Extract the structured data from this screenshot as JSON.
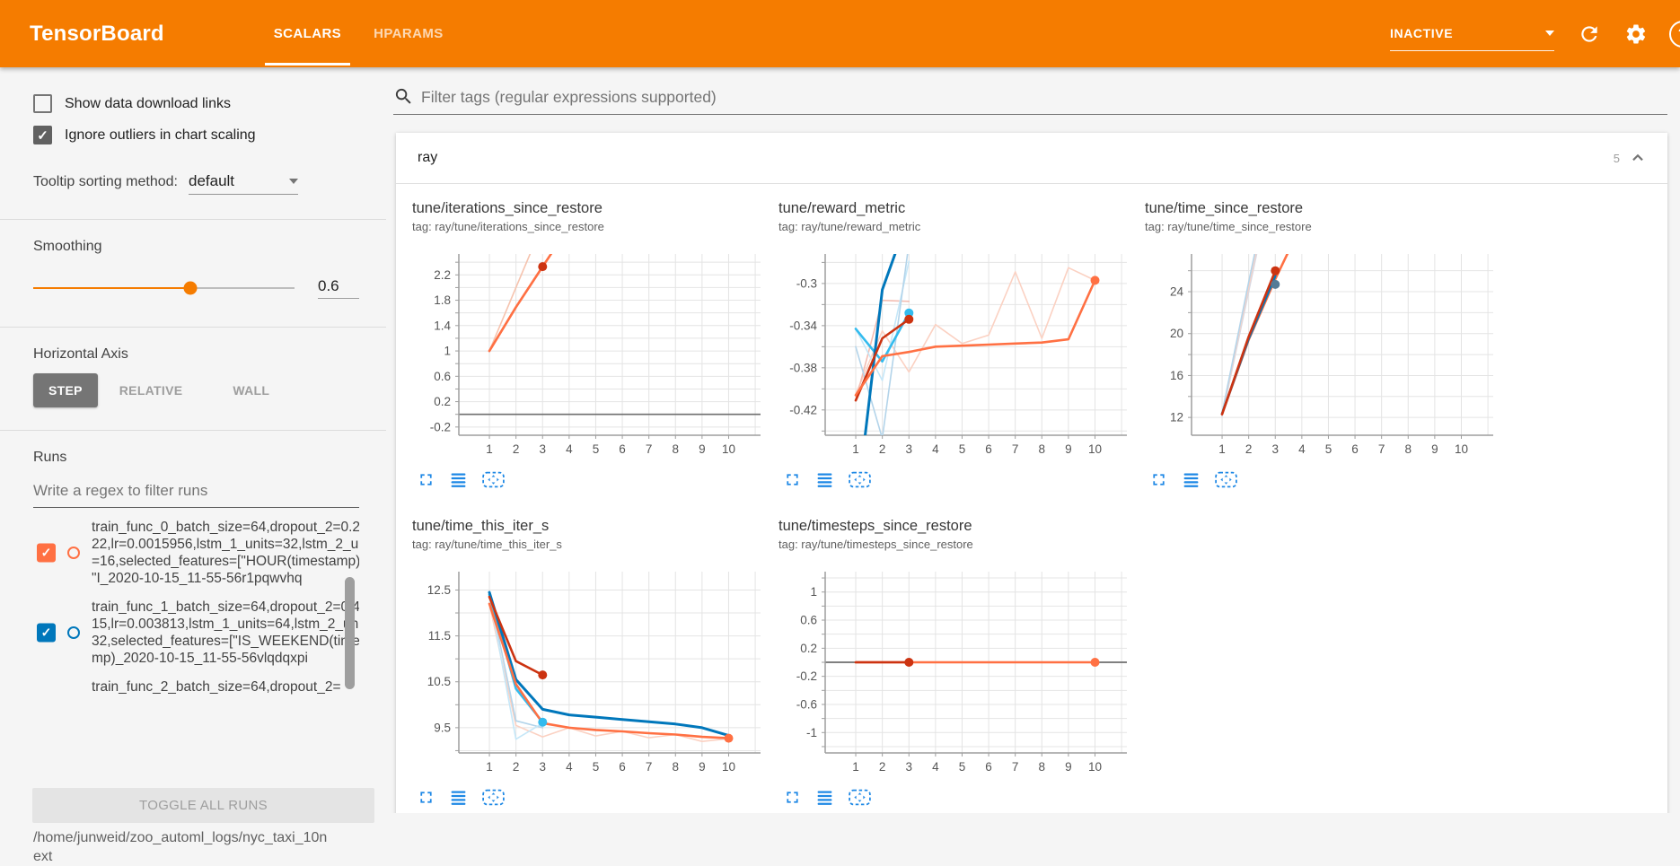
{
  "header": {
    "title": "TensorBoard",
    "tabs": [
      {
        "label": "SCALARS",
        "active": true
      },
      {
        "label": "HPARAMS",
        "active": false
      }
    ],
    "status": "INACTIVE",
    "icons": [
      "dropdown-caret-icon",
      "refresh-icon",
      "gear-icon",
      "help-icon"
    ],
    "help_glyph": "?",
    "accent_color": "#f57c00"
  },
  "sidebar": {
    "checkboxes": [
      {
        "label": "Show data download links",
        "checked": false
      },
      {
        "label": "Ignore outliers in chart scaling",
        "checked": true
      }
    ],
    "tooltip_sorting": {
      "label": "Tooltip sorting method:",
      "value": "default"
    },
    "smoothing": {
      "label": "Smoothing",
      "value": "0.6",
      "percent": 60
    },
    "horizontal_axis": {
      "label": "Horizontal Axis",
      "options": [
        "STEP",
        "RELATIVE",
        "WALL"
      ],
      "selected": "STEP"
    },
    "runs": {
      "label": "Runs",
      "filter_placeholder": "Write a regex to filter runs",
      "items": [
        {
          "name": "train_func_0_batch_size=64,dropout_2=0.21822,lr=0.0015956,lstm_1_units=32,lstm_2_units=16,selected_features=[\"HOUR(timestamp)\", \"I_2020-10-15_11-55-56r1pqwvhq",
          "color": "#ff7043",
          "checked": true,
          "checkbox_visible": true
        },
        {
          "name": "train_func_1_batch_size=64,dropout_2=0.44315,lr=0.003813,lstm_1_units=64,lstm_2_units=32,selected_features=[\"IS_WEEKEND(timestamp)_2020-10-15_11-55-56vlqdqxpi",
          "color": "#0077bb",
          "checked": true,
          "checkbox_visible": true
        },
        {
          "name": "train_func_2_batch_size=64,dropout_2=",
          "color": "#cc3311",
          "checked": true,
          "checkbox_visible": false
        }
      ],
      "toggle_button": "TOGGLE ALL RUNS",
      "log_dir": "/home/junweid/zoo_automl_logs/nyc_taxi_10next"
    }
  },
  "main": {
    "filter_placeholder": "Filter tags (regular expressions supported)",
    "section": {
      "name": "ray",
      "count": "5"
    }
  },
  "chart_data": [
    {
      "type": "line",
      "title": "tune/iterations_since_restore",
      "tag_label": "tag: ray/tune/iterations_since_restore",
      "xlabel": "step",
      "xticks": [
        1,
        2,
        3,
        4,
        5,
        6,
        7,
        8,
        9,
        10
      ],
      "xlim": [
        -0.15,
        11.2
      ],
      "ylim": [
        -0.33,
        2.53
      ],
      "yticks": [
        2.2,
        1.8,
        1.4,
        1,
        0.6,
        0.2,
        -0.2
      ],
      "yminor": 0.2,
      "grid": true,
      "zero_line": true,
      "series": [
        {
          "name": "train_func_0 (raw)",
          "color": "#f6c3ae",
          "width": 1.6,
          "points": [
            [
              1,
              1
            ],
            [
              2,
              2
            ],
            [
              3,
              3
            ]
          ]
        },
        {
          "name": "train_func_2 (smoothed)",
          "color": "#cc3311",
          "width": 2.2,
          "points": [
            [
              1,
              1
            ],
            [
              2,
              1.69
            ],
            [
              3,
              2.33
            ]
          ]
        },
        {
          "name": "train_func_0 (smoothed)",
          "color": "#ff7043",
          "width": 2.6,
          "points": [
            [
              1,
              1
            ],
            [
              2,
              1.69
            ],
            [
              3,
              2.33
            ],
            [
              4,
              2.96
            ]
          ]
        }
      ],
      "end_dots": [
        {
          "x": 3,
          "y": 2.33,
          "color": "#cc3311"
        }
      ]
    },
    {
      "type": "line",
      "title": "tune/reward_metric",
      "tag_label": "tag: ray/tune/reward_metric",
      "xlabel": "step",
      "xticks": [
        1,
        2,
        3,
        4,
        5,
        6,
        7,
        8,
        9,
        10
      ],
      "xlim": [
        -0.15,
        11.2
      ],
      "ylim": [
        -0.444,
        -0.272
      ],
      "yticks": [
        -0.3,
        -0.34,
        -0.38,
        -0.42
      ],
      "yminor": 0.02,
      "grid": true,
      "zero_line": false,
      "series": [
        {
          "name": "train_func_0 (raw)",
          "color": "#fbd1c2",
          "width": 1.6,
          "points": [
            [
              1,
              -0.405
            ],
            [
              2,
              -0.345
            ],
            [
              3,
              -0.384
            ],
            [
              4,
              -0.339
            ],
            [
              5,
              -0.357
            ],
            [
              6,
              -0.349
            ],
            [
              7,
              -0.289
            ],
            [
              8,
              -0.352
            ],
            [
              9,
              -0.285
            ],
            [
              10,
              -0.297
            ]
          ]
        },
        {
          "name": "train_func_2 (raw)",
          "color": "#f3bdb2",
          "width": 1.6,
          "points": [
            [
              1,
              -0.411
            ],
            [
              2,
              -0.316
            ],
            [
              3,
              -0.317
            ]
          ]
        },
        {
          "name": "train_func_3 (raw)",
          "color": "#c5e7f8",
          "width": 1.6,
          "points": [
            [
              1,
              -0.343
            ],
            [
              2,
              -0.392
            ],
            [
              3,
              -0.279
            ]
          ]
        },
        {
          "name": "train_func_1 (raw)",
          "color": "#b3d4ea",
          "width": 1.6,
          "points": [
            [
              1,
              -0.36
            ],
            [
              2,
              -0.447
            ],
            [
              3,
              -0.262
            ]
          ]
        },
        {
          "name": "train_func_3 (smoothed)",
          "color": "#33bbee",
          "width": 2.6,
          "points": [
            [
              1,
              -0.343
            ],
            [
              2,
              -0.374
            ],
            [
              3,
              -0.328
            ]
          ]
        },
        {
          "name": "train_func_1 (smoothed)",
          "color": "#0077bb",
          "width": 3,
          "points": [
            [
              1,
              -0.52
            ],
            [
              2,
              -0.306
            ],
            [
              3,
              -0.235
            ]
          ]
        },
        {
          "name": "train_func_2 (smoothed)",
          "color": "#cc3311",
          "width": 2.6,
          "points": [
            [
              1,
              -0.411
            ],
            [
              2,
              -0.352
            ],
            [
              3,
              -0.334
            ]
          ]
        },
        {
          "name": "train_func_0 (smoothed)",
          "color": "#ff7043",
          "width": 2.6,
          "points": [
            [
              1,
              -0.406
            ],
            [
              2,
              -0.369
            ],
            [
              3,
              -0.365
            ],
            [
              4,
              -0.36
            ],
            [
              5,
              -0.359
            ],
            [
              6,
              -0.358
            ],
            [
              7,
              -0.357
            ],
            [
              8,
              -0.356
            ],
            [
              9,
              -0.353
            ],
            [
              10,
              -0.297
            ]
          ]
        }
      ],
      "end_dots": [
        {
          "x": 3,
          "y": -0.328,
          "color": "#33bbee"
        },
        {
          "x": 3,
          "y": -0.334,
          "color": "#cc3311"
        },
        {
          "x": 10,
          "y": -0.297,
          "color": "#ff7043"
        }
      ]
    },
    {
      "type": "line",
      "title": "tune/time_since_restore",
      "tag_label": "tag: ray/tune/time_since_restore",
      "xlabel": "step",
      "xticks": [
        1,
        2,
        3,
        4,
        5,
        6,
        7,
        8,
        9,
        10
      ],
      "xlim": [
        -0.15,
        11.2
      ],
      "ylim": [
        10.3,
        27.6
      ],
      "yticks": [
        24,
        20,
        16,
        12
      ],
      "yminor": 2,
      "grid": true,
      "zero_line": false,
      "series": [
        {
          "name": "train_func_4 (raw)",
          "color": "#d8d8e2",
          "width": 1.6,
          "points": [
            [
              1,
              12.1
            ],
            [
              2,
              24.0
            ],
            [
              3,
              36
            ]
          ]
        },
        {
          "name": "train_func_0 (raw)",
          "color": "#fbd1c2",
          "width": 1.6,
          "points": [
            [
              1,
              12.3
            ],
            [
              2,
              24.5
            ],
            [
              3,
              36.6
            ]
          ]
        },
        {
          "name": "train_func_1 (raw)",
          "color": "#b3d4ea",
          "width": 1.6,
          "points": [
            [
              1,
              12.4
            ],
            [
              2,
              24.9
            ],
            [
              3,
              37
            ]
          ]
        },
        {
          "name": "train_func_0 (smoothed)",
          "color": "#ff7043",
          "width": 2.6,
          "points": [
            [
              1,
              12.3
            ],
            [
              2,
              19.4
            ],
            [
              3,
              25.2
            ],
            [
              4,
              30.5
            ]
          ]
        },
        {
          "name": "train_func_1 (smoothed)",
          "color": "#0077bb",
          "width": 2.6,
          "points": [
            [
              1,
              12.35
            ],
            [
              2,
              19.5
            ],
            [
              3,
              25.5
            ]
          ]
        },
        {
          "name": "train_func_2 (smoothed)",
          "color": "#cc3311",
          "width": 2.6,
          "points": [
            [
              1,
              12.3
            ],
            [
              2,
              19.7
            ],
            [
              3,
              26.0
            ]
          ]
        }
      ],
      "end_dots": [
        {
          "x": 3,
          "y": 26.0,
          "color": "#cc3311"
        },
        {
          "x": 3,
          "y": 24.7,
          "color": "#557b96"
        }
      ]
    },
    {
      "type": "line",
      "title": "tune/time_this_iter_s",
      "tag_label": "tag: ray/tune/time_this_iter_s",
      "xlabel": "step",
      "xticks": [
        1,
        2,
        3,
        4,
        5,
        6,
        7,
        8,
        9,
        10
      ],
      "xlim": [
        -0.15,
        11.2
      ],
      "ylim": [
        8.95,
        12.9
      ],
      "yticks": [
        12.5,
        11.5,
        10.5,
        9.5
      ],
      "yminor": 0.5,
      "grid": true,
      "zero_line": false,
      "series": [
        {
          "name": "train_func_0 (raw)",
          "color": "#fbd1c2",
          "width": 1.6,
          "points": [
            [
              1,
              12.2
            ],
            [
              2,
              9.55
            ],
            [
              3,
              9.3
            ],
            [
              4,
              9.5
            ],
            [
              5,
              9.32
            ],
            [
              6,
              9.42
            ],
            [
              7,
              9.28
            ],
            [
              8,
              9.35
            ],
            [
              9,
              9.2
            ],
            [
              10,
              9.26
            ]
          ]
        },
        {
          "name": "train_func_1 (raw)",
          "color": "#b3d4ea",
          "width": 1.6,
          "points": [
            [
              1,
              12.45
            ],
            [
              2,
              9.65
            ],
            [
              3,
              9.5
            ]
          ]
        },
        {
          "name": "train_func_3 (raw)",
          "color": "#c5e7f8",
          "width": 1.6,
          "points": [
            [
              1,
              12.4
            ],
            [
              2,
              9.25
            ],
            [
              3,
              9.6
            ]
          ]
        },
        {
          "name": "train_func_3 (smoothed)",
          "color": "#33bbee",
          "width": 2.6,
          "points": [
            [
              1,
              12.4
            ],
            [
              2,
              10.35
            ],
            [
              3,
              9.62
            ]
          ]
        },
        {
          "name": "train_func_1 (smoothed)",
          "color": "#0077bb",
          "width": 3,
          "points": [
            [
              1,
              12.45
            ],
            [
              2,
              10.55
            ],
            [
              3,
              9.9
            ],
            [
              4,
              9.78
            ],
            [
              5,
              9.73
            ],
            [
              6,
              9.68
            ],
            [
              7,
              9.63
            ],
            [
              8,
              9.58
            ],
            [
              9,
              9.5
            ],
            [
              10,
              9.33
            ]
          ]
        },
        {
          "name": "train_func_2 (smoothed)",
          "color": "#cc3311",
          "width": 2.6,
          "points": [
            [
              1,
              12.35
            ],
            [
              2,
              10.95
            ],
            [
              3,
              10.65
            ]
          ]
        },
        {
          "name": "train_func_0 (smoothed)",
          "color": "#ff7043",
          "width": 2.6,
          "points": [
            [
              1,
              12.2
            ],
            [
              2,
              10.45
            ],
            [
              3,
              9.6
            ],
            [
              4,
              9.5
            ],
            [
              5,
              9.45
            ],
            [
              6,
              9.42
            ],
            [
              7,
              9.38
            ],
            [
              8,
              9.35
            ],
            [
              9,
              9.3
            ],
            [
              10,
              9.27
            ]
          ]
        }
      ],
      "end_dots": [
        {
          "x": 3,
          "y": 10.65,
          "color": "#cc3311"
        },
        {
          "x": 3,
          "y": 9.62,
          "color": "#33bbee"
        },
        {
          "x": 10,
          "y": 9.27,
          "color": "#ff7043"
        }
      ]
    },
    {
      "type": "line",
      "title": "tune/timesteps_since_restore",
      "tag_label": "tag: ray/tune/timesteps_since_restore",
      "xlabel": "step",
      "xticks": [
        1,
        2,
        3,
        4,
        5,
        6,
        7,
        8,
        9,
        10
      ],
      "xlim": [
        -0.15,
        11.2
      ],
      "ylim": [
        -1.29,
        1.29
      ],
      "yticks": [
        1,
        0.6,
        0.2,
        -0.2,
        -0.6,
        -1
      ],
      "yminor": 0.2,
      "grid": true,
      "zero_line": true,
      "series": [
        {
          "name": "train_func_0 (smoothed)",
          "color": "#ff7043",
          "width": 2.6,
          "points": [
            [
              1,
              0
            ],
            [
              10,
              0
            ]
          ]
        },
        {
          "name": "train_func_2 (smoothed)",
          "color": "#cc3311",
          "width": 2.6,
          "points": [
            [
              1,
              0
            ],
            [
              3,
              0
            ]
          ]
        }
      ],
      "end_dots": [
        {
          "x": 3,
          "y": 0,
          "color": "#cc3311"
        },
        {
          "x": 10,
          "y": 0,
          "color": "#ff7043"
        }
      ]
    }
  ]
}
